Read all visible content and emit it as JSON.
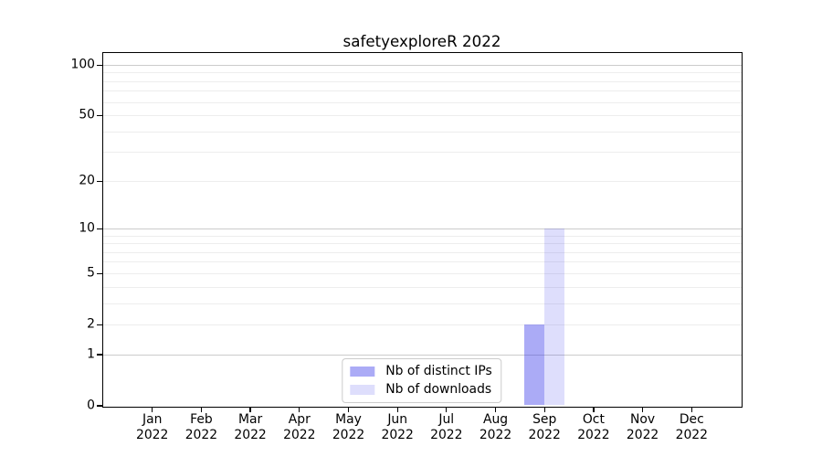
{
  "chart_data": {
    "type": "bar",
    "title": "safetyexploreR 2022",
    "categories": [
      {
        "month": "Jan",
        "year": "2022"
      },
      {
        "month": "Feb",
        "year": "2022"
      },
      {
        "month": "Mar",
        "year": "2022"
      },
      {
        "month": "Apr",
        "year": "2022"
      },
      {
        "month": "May",
        "year": "2022"
      },
      {
        "month": "Jun",
        "year": "2022"
      },
      {
        "month": "Jul",
        "year": "2022"
      },
      {
        "month": "Aug",
        "year": "2022"
      },
      {
        "month": "Sep",
        "year": "2022"
      },
      {
        "month": "Oct",
        "year": "2022"
      },
      {
        "month": "Nov",
        "year": "2022"
      },
      {
        "month": "Dec",
        "year": "2022"
      }
    ],
    "series": [
      {
        "name": "Nb of distinct IPs",
        "color": "rgba(60,60,235,0.43)",
        "values": [
          0,
          0,
          0,
          0,
          0,
          0,
          0,
          0,
          2,
          0,
          0,
          0
        ]
      },
      {
        "name": "Nb of downloads",
        "color": "rgba(60,60,235,0.17)",
        "values": [
          0,
          0,
          0,
          0,
          0,
          0,
          0,
          0,
          10,
          0,
          0,
          0
        ]
      }
    ],
    "xlabel": "",
    "ylabel": "",
    "yscale": "log1p",
    "yticks": [
      0,
      1,
      2,
      5,
      10,
      20,
      50,
      100
    ],
    "ylim": [
      0,
      118
    ],
    "grid": {
      "major_values": [
        1,
        10,
        100
      ],
      "minor_values": [
        2,
        3,
        4,
        5,
        6,
        7,
        8,
        9,
        20,
        30,
        40,
        50,
        60,
        70,
        80,
        90
      ],
      "major_color": "#cbcbcb",
      "minor_color": "#ededed"
    },
    "legend_position": "lower center",
    "axis_color": "#000000",
    "background_color": "#ffffff"
  }
}
